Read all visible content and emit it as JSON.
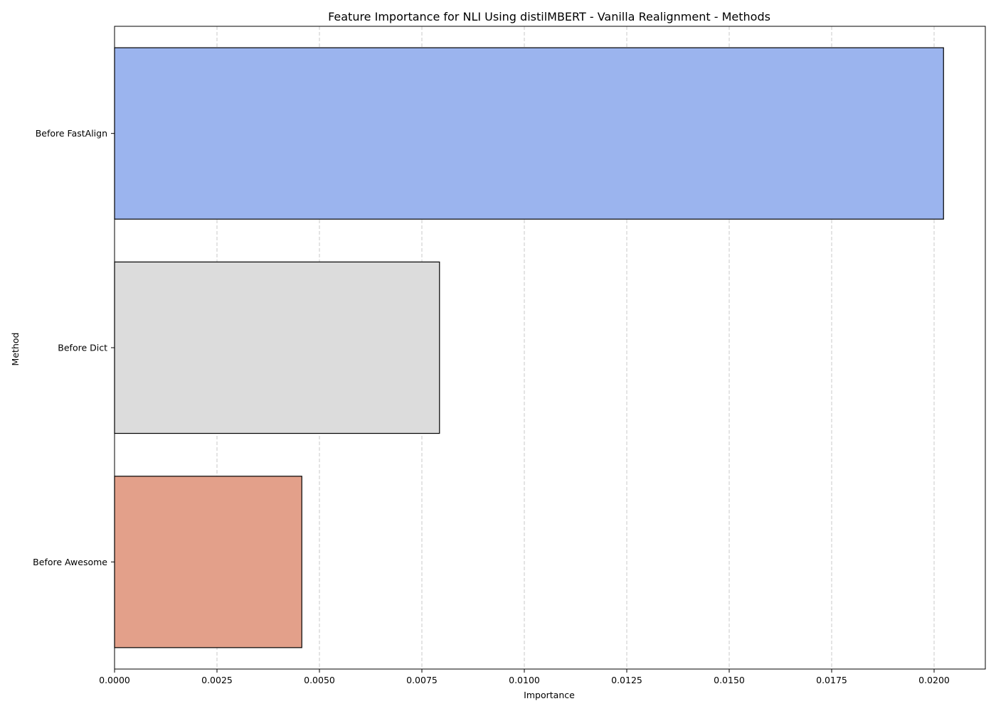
{
  "chart_data": {
    "type": "bar",
    "orientation": "horizontal",
    "title": "Feature Importance for NLI Using distilMBERT - Vanilla Realignment - Methods",
    "xlabel": "Importance",
    "ylabel": "Method",
    "categories": [
      "Before FastAlign",
      "Before Dict",
      "Before Awesome"
    ],
    "values": [
      0.02023,
      0.00793,
      0.00457
    ],
    "colors": [
      "#9bb4ee",
      "#dcdcdc",
      "#e3a08a"
    ],
    "xlim": [
      0.0,
      0.02125
    ],
    "xticks": [
      0.0,
      0.0025,
      0.005,
      0.0075,
      0.01,
      0.0125,
      0.015,
      0.0175,
      0.02
    ],
    "xtick_labels": [
      "0.0000",
      "0.0025",
      "0.0050",
      "0.0075",
      "0.0100",
      "0.0125",
      "0.0150",
      "0.0175",
      "0.0200"
    ],
    "grid": "x-dashed",
    "legend": "none"
  }
}
